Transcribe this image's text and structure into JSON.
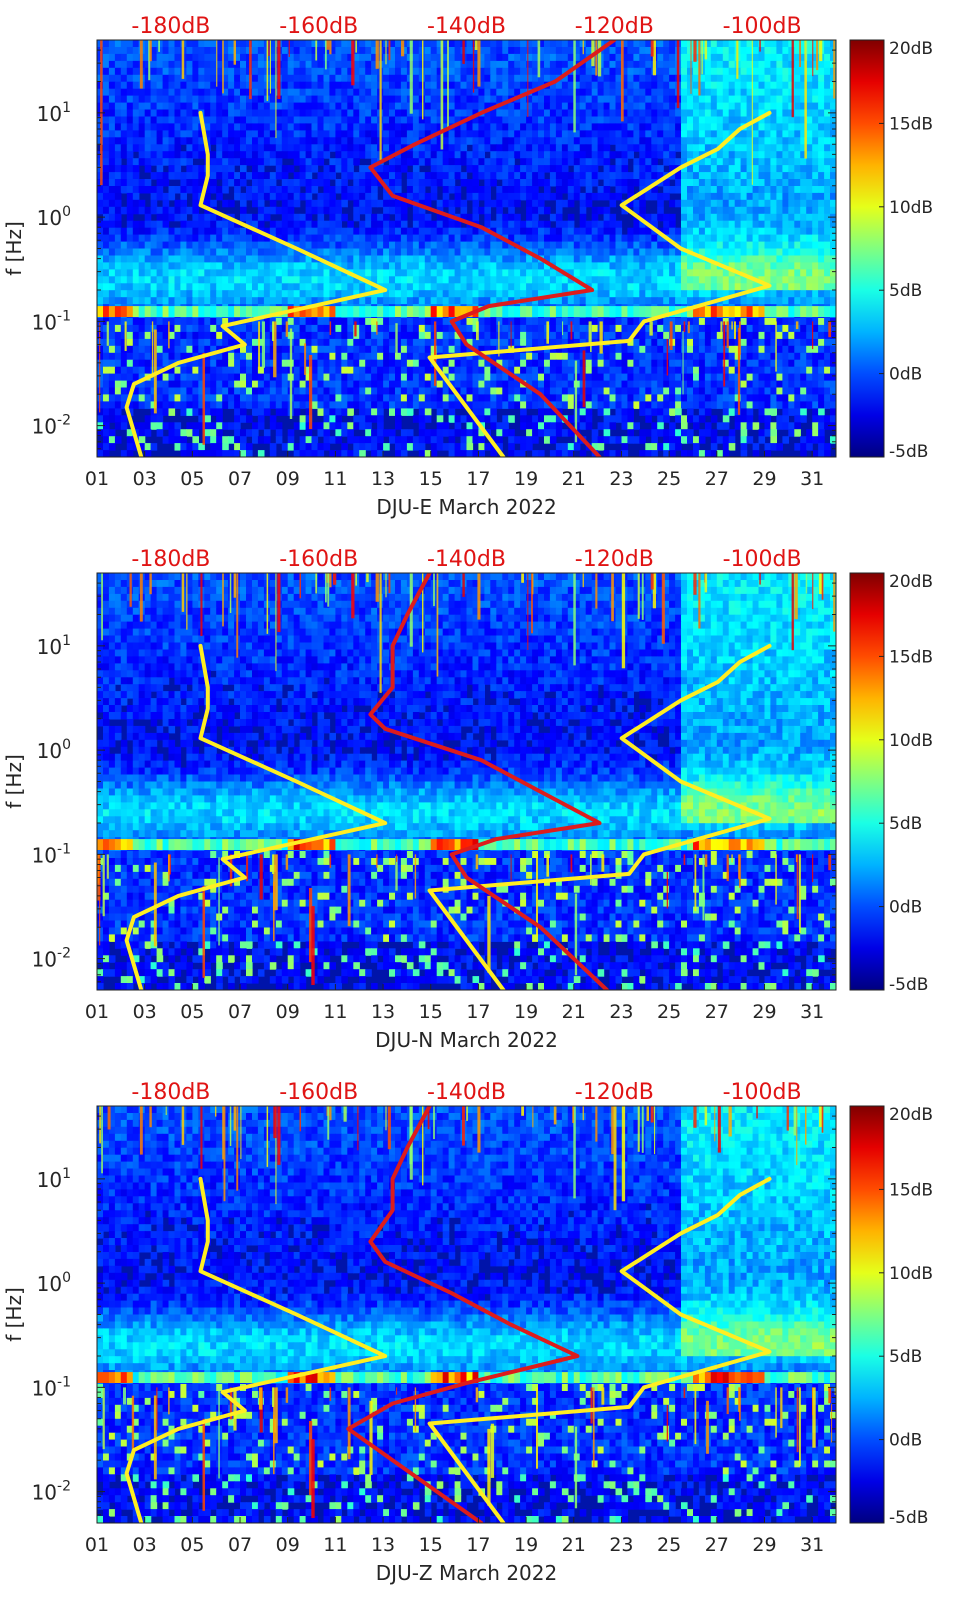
{
  "chart_data": [
    {
      "type": "heatmap",
      "title": "",
      "xlabel": "DJU-E March 2022",
      "ylabel": "f [Hz]",
      "x_ticks": [
        "01",
        "03",
        "05",
        "07",
        "09",
        "11",
        "13",
        "15",
        "17",
        "19",
        "21",
        "23",
        "25",
        "27",
        "29",
        "31"
      ],
      "y_ticks": [
        "10^-2",
        "10^-1",
        "10^0",
        "10^1"
      ],
      "y_scale": "log",
      "ylim": [
        0.005,
        50
      ],
      "top_axis_ticks": [
        "-180dB",
        "-160dB",
        "-140dB",
        "-120dB",
        "-100dB"
      ],
      "top_axis_range_dB": [
        -190,
        -90
      ],
      "colorbar": {
        "ticks": [
          "20dB",
          "15dB",
          "10dB",
          "5dB",
          "0dB",
          "-5dB"
        ],
        "range_dB": [
          -5,
          20
        ],
        "colormap": "jet"
      },
      "series": [
        {
          "color": "#ffee22",
          "units": "dB",
          "points": [
            [
              -184,
              0.005
            ],
            [
              -186,
              0.015
            ],
            [
              -185,
              0.025
            ],
            [
              -179,
              0.04
            ],
            [
              -170,
              0.06
            ],
            [
              -173,
              0.09
            ],
            [
              -151,
              0.2
            ],
            [
              -163,
              0.5
            ],
            [
              -176,
              1.3
            ],
            [
              -175,
              2.5
            ],
            [
              -175,
              4
            ],
            [
              -176,
              10
            ]
          ]
        },
        {
          "color": "#ffee22",
          "units": "dB",
          "points": [
            [
              -135,
              0.005
            ],
            [
              -145,
              0.045
            ],
            [
              -118,
              0.065
            ],
            [
              -116,
              0.1
            ],
            [
              -99,
              0.22
            ],
            [
              -111,
              0.5
            ],
            [
              -119,
              1.3
            ],
            [
              -111,
              3
            ],
            [
              -106,
              4.5
            ],
            [
              -103,
              7
            ],
            [
              -99,
              10
            ]
          ]
        },
        {
          "color": "#dd1c1c",
          "units": "dB",
          "points": [
            [
              -122,
              0.005
            ],
            [
              -130,
              0.02
            ],
            [
              -140,
              0.06
            ],
            [
              -142,
              0.1
            ],
            [
              -137,
              0.14
            ],
            [
              -123,
              0.2
            ],
            [
              -130,
              0.4
            ],
            [
              -138,
              0.8
            ],
            [
              -150,
              1.6
            ],
            [
              -153,
              3
            ],
            [
              -147,
              5
            ],
            [
              -138,
              10
            ],
            [
              -128,
              20
            ],
            [
              -120,
              50
            ]
          ]
        }
      ]
    },
    {
      "type": "heatmap",
      "title": "",
      "xlabel": "DJU-N March 2022",
      "ylabel": "f [Hz]",
      "x_ticks": [
        "01",
        "03",
        "05",
        "07",
        "09",
        "11",
        "13",
        "15",
        "17",
        "19",
        "21",
        "23",
        "25",
        "27",
        "29",
        "31"
      ],
      "y_ticks": [
        "10^-2",
        "10^-1",
        "10^0",
        "10^1"
      ],
      "y_scale": "log",
      "ylim": [
        0.005,
        50
      ],
      "top_axis_ticks": [
        "-180dB",
        "-160dB",
        "-140dB",
        "-120dB",
        "-100dB"
      ],
      "top_axis_range_dB": [
        -190,
        -90
      ],
      "colorbar": {
        "ticks": [
          "20dB",
          "15dB",
          "10dB",
          "5dB",
          "0dB",
          "-5dB"
        ],
        "range_dB": [
          -5,
          20
        ],
        "colormap": "jet"
      },
      "series": [
        {
          "color": "#ffee22",
          "units": "dB",
          "points": [
            [
              -184,
              0.005
            ],
            [
              -186,
              0.015
            ],
            [
              -185,
              0.025
            ],
            [
              -179,
              0.04
            ],
            [
              -170,
              0.06
            ],
            [
              -173,
              0.09
            ],
            [
              -151,
              0.2
            ],
            [
              -163,
              0.5
            ],
            [
              -176,
              1.3
            ],
            [
              -175,
              2.5
            ],
            [
              -175,
              4
            ],
            [
              -176,
              10
            ]
          ]
        },
        {
          "color": "#ffee22",
          "units": "dB",
          "points": [
            [
              -135,
              0.005
            ],
            [
              -145,
              0.045
            ],
            [
              -118,
              0.065
            ],
            [
              -116,
              0.1
            ],
            [
              -99,
              0.22
            ],
            [
              -111,
              0.5
            ],
            [
              -119,
              1.3
            ],
            [
              -111,
              3
            ],
            [
              -106,
              4.5
            ],
            [
              -103,
              7
            ],
            [
              -99,
              10
            ]
          ]
        },
        {
          "color": "#dd1c1c",
          "units": "dB",
          "points": [
            [
              -121,
              0.005
            ],
            [
              -130,
              0.02
            ],
            [
              -140,
              0.06
            ],
            [
              -142,
              0.1
            ],
            [
              -136,
              0.14
            ],
            [
              -122,
              0.2
            ],
            [
              -130,
              0.4
            ],
            [
              -138,
              0.8
            ],
            [
              -151,
              1.6
            ],
            [
              -153,
              2.2
            ],
            [
              -150,
              4
            ],
            [
              -150,
              10
            ],
            [
              -148,
              20
            ],
            [
              -145,
              50
            ]
          ]
        }
      ]
    },
    {
      "type": "heatmap",
      "title": "",
      "xlabel": "DJU-Z March 2022",
      "ylabel": "f [Hz]",
      "x_ticks": [
        "01",
        "03",
        "05",
        "07",
        "09",
        "11",
        "13",
        "15",
        "17",
        "19",
        "21",
        "23",
        "25",
        "27",
        "29",
        "31"
      ],
      "y_ticks": [
        "10^-2",
        "10^-1",
        "10^0",
        "10^1"
      ],
      "y_scale": "log",
      "ylim": [
        0.005,
        50
      ],
      "top_axis_ticks": [
        "-180dB",
        "-160dB",
        "-140dB",
        "-120dB",
        "-100dB"
      ],
      "top_axis_range_dB": [
        -190,
        -90
      ],
      "colorbar": {
        "ticks": [
          "20dB",
          "15dB",
          "10dB",
          "5dB",
          "0dB",
          "-5dB"
        ],
        "range_dB": [
          -5,
          20
        ],
        "colormap": "jet"
      },
      "series": [
        {
          "color": "#ffee22",
          "units": "dB",
          "points": [
            [
              -184,
              0.005
            ],
            [
              -186,
              0.015
            ],
            [
              -185,
              0.025
            ],
            [
              -179,
              0.04
            ],
            [
              -170,
              0.06
            ],
            [
              -173,
              0.09
            ],
            [
              -151,
              0.2
            ],
            [
              -163,
              0.5
            ],
            [
              -176,
              1.3
            ],
            [
              -175,
              2.5
            ],
            [
              -175,
              4
            ],
            [
              -176,
              10
            ]
          ]
        },
        {
          "color": "#ffee22",
          "units": "dB",
          "points": [
            [
              -135,
              0.005
            ],
            [
              -145,
              0.045
            ],
            [
              -118,
              0.065
            ],
            [
              -116,
              0.1
            ],
            [
              -99,
              0.22
            ],
            [
              -111,
              0.5
            ],
            [
              -119,
              1.3
            ],
            [
              -111,
              3
            ],
            [
              -106,
              4.5
            ],
            [
              -103,
              7
            ],
            [
              -99,
              10
            ]
          ]
        },
        {
          "color": "#dd1c1c",
          "units": "dB",
          "points": [
            [
              -138,
              0.005
            ],
            [
              -150,
              0.02
            ],
            [
              -156,
              0.04
            ],
            [
              -150,
              0.07
            ],
            [
              -140,
              0.11
            ],
            [
              -125,
              0.2
            ],
            [
              -134,
              0.4
            ],
            [
              -142,
              0.8
            ],
            [
              -151,
              1.6
            ],
            [
              -153,
              2.5
            ],
            [
              -150,
              5
            ],
            [
              -150,
              10
            ],
            [
              -148,
              20
            ],
            [
              -145,
              50
            ]
          ]
        }
      ]
    }
  ]
}
